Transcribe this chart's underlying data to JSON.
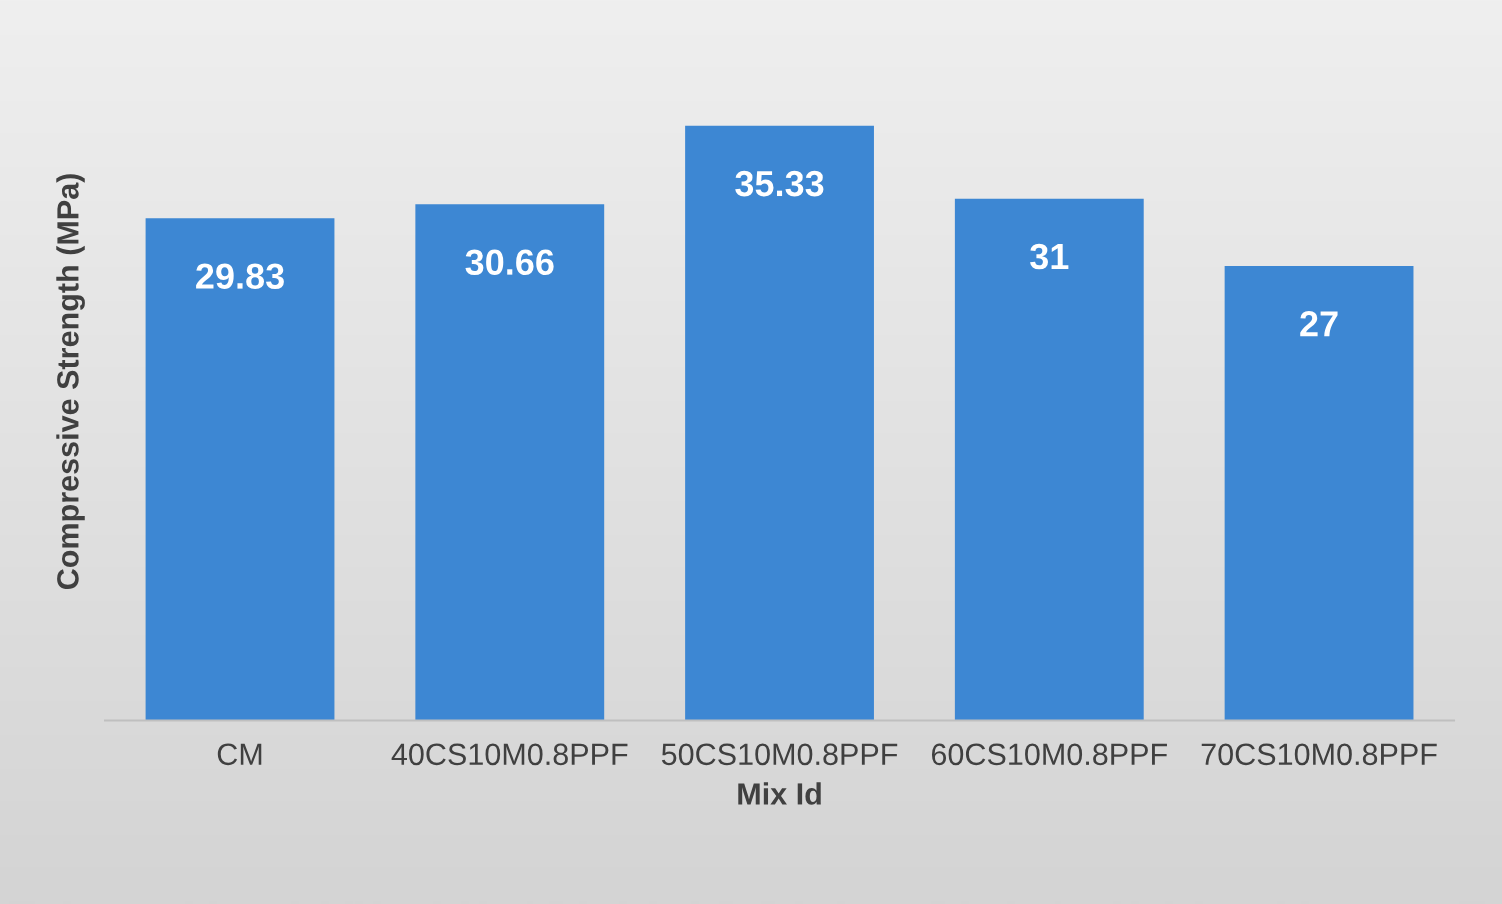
{
  "chart_data": {
    "type": "bar",
    "xlabel": "Mix Id",
    "ylabel": "Compressive Strength (MPa)",
    "categories": [
      "CM",
      "40CS10M0.8PPF",
      "50CS10M0.8PPF",
      "60CS10M0.8PPF",
      "70CS10M0.8PPF"
    ],
    "values": [
      29.83,
      30.66,
      35.33,
      31,
      27
    ],
    "value_labels": [
      "29.83",
      "30.66",
      "35.33",
      "31",
      "27"
    ],
    "color": "#3d87d3",
    "tick_labels": "x"
  }
}
